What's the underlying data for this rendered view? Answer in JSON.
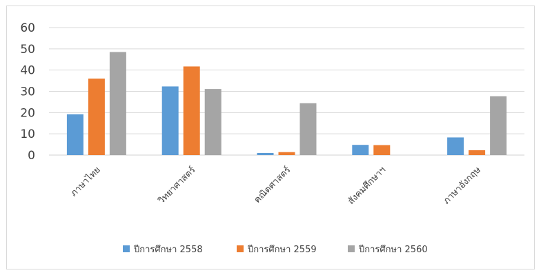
{
  "chart_data": {
    "type": "bar",
    "title": "",
    "xlabel": "",
    "ylabel": "",
    "categories": [
      "ภาษาไทย",
      "วิทยาศาสตร์",
      "คณิตศาสตร์",
      "สังคมศึกษาฯ",
      "ภาษาอังกฤษ"
    ],
    "series": [
      {
        "name": "ปีการศึกษา 2558",
        "color": "#5b9bd5",
        "values": [
          19.2,
          32.3,
          1.0,
          4.8,
          8.3
        ]
      },
      {
        "name": "ปีการศึกษา 2559",
        "color": "#ed7d31",
        "values": [
          36.0,
          41.7,
          1.4,
          4.7,
          2.3
        ]
      },
      {
        "name": "ปีการศึกษา 2560",
        "color": "#a5a5a5",
        "values": [
          48.5,
          31.1,
          24.4,
          0,
          27.7
        ]
      }
    ],
    "ylim": [
      0,
      60
    ],
    "yticks": [
      "0",
      "10",
      "20",
      "30",
      "40",
      "50",
      "60"
    ],
    "grid": true,
    "legend_position": "bottom"
  }
}
